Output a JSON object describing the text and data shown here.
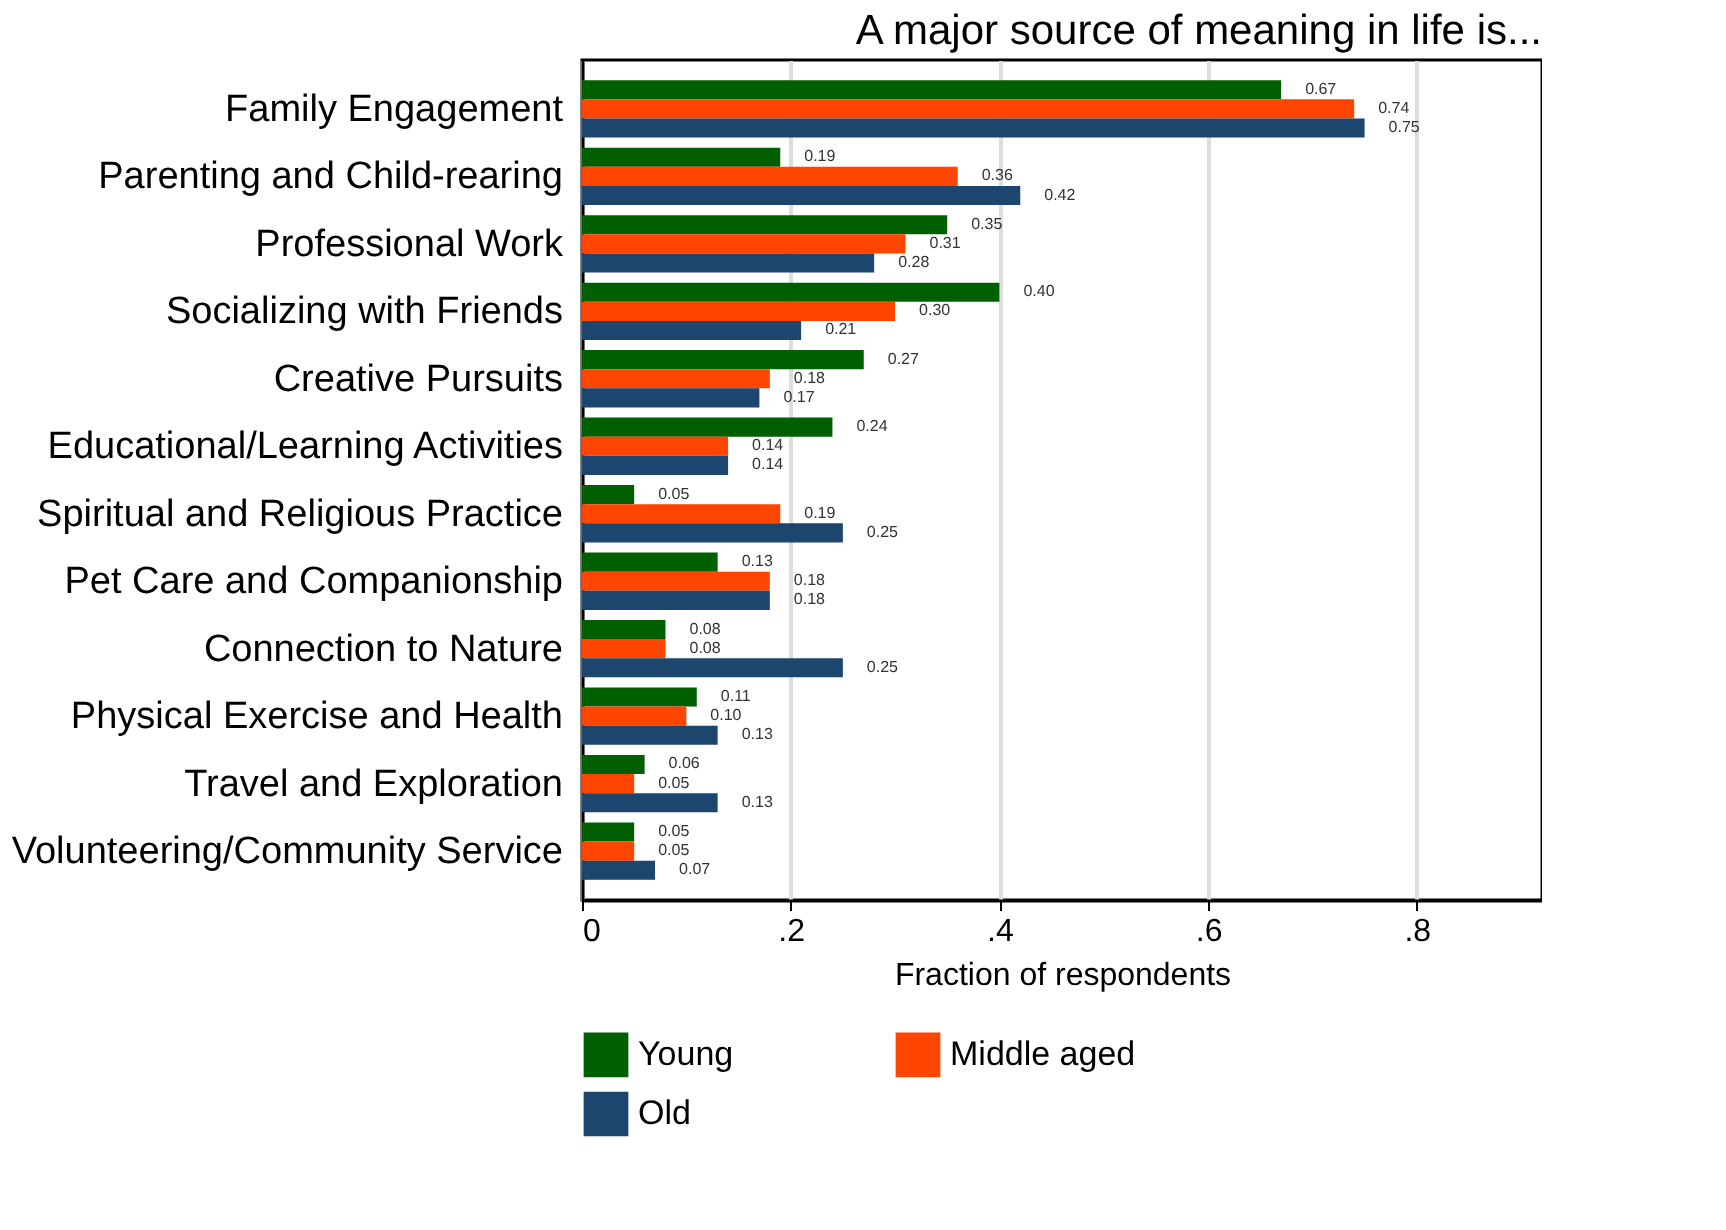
{
  "chart_data": {
    "type": "bar",
    "orientation": "horizontal",
    "title": "A major source of meaning in life is...",
    "xlabel": "Fraction of respondents",
    "categories": [
      "Family Engagement",
      "Parenting and Child-rearing",
      "Professional Work",
      "Socializing with Friends",
      "Creative Pursuits",
      "Educational/Learning Activities",
      "Spiritual and Religious Practice",
      "Pet Care and Companionship",
      "Connection to Nature",
      "Physical Exercise and Health",
      "Travel and Exploration",
      "Volunteering/Community Service"
    ],
    "series": [
      {
        "name": "Young",
        "color": "#005f00",
        "values": [
          0.67,
          0.19,
          0.35,
          0.4,
          0.27,
          0.24,
          0.05,
          0.13,
          0.08,
          0.11,
          0.06,
          0.05
        ],
        "value_labels": [
          "0.67",
          "0.19",
          "0.35",
          "0.40",
          "0.27",
          "0.24",
          "0.05",
          "0.13",
          "0.08",
          "0.11",
          "0.06",
          "0.05"
        ]
      },
      {
        "name": "Middle aged",
        "color": "#ff4500",
        "values": [
          0.74,
          0.36,
          0.31,
          0.3,
          0.18,
          0.14,
          0.19,
          0.18,
          0.08,
          0.1,
          0.05,
          0.05
        ],
        "value_labels": [
          "0.74",
          "0.36",
          "0.31",
          "0.30",
          "0.18",
          "0.14",
          "0.19",
          "0.18",
          "0.08",
          "0.10",
          "0.05",
          "0.05"
        ]
      },
      {
        "name": "Old",
        "color": "#1c466e",
        "values": [
          0.75,
          0.42,
          0.28,
          0.21,
          0.17,
          0.14,
          0.25,
          0.18,
          0.25,
          0.13,
          0.13,
          0.07
        ],
        "value_labels": [
          "0.75",
          "0.42",
          "0.28",
          "0.21",
          "0.17",
          "0.14",
          "0.25",
          "0.18",
          "0.25",
          "0.13",
          "0.13",
          "0.07"
        ]
      }
    ],
    "xlim": [
      0,
      0.92
    ],
    "xticks": [
      0,
      {
        "value": 0.2,
        "label": ".2"
      },
      {
        "value": 0.4,
        "label": ".4"
      },
      {
        "value": 0.6,
        "label": ".6"
      },
      {
        "value": 0.8,
        "label": ".8"
      }
    ],
    "grid": "x",
    "legend": "bottom"
  }
}
